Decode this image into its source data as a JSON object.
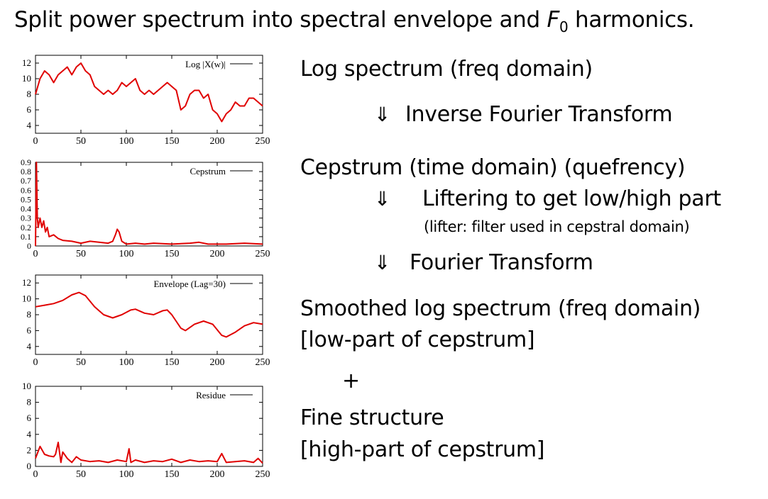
{
  "slide": {
    "title_pre": "Split power spectrum into spectral envelope and ",
    "title_f": "F",
    "title_sub": "0",
    "title_post": " harmonics."
  },
  "steps": {
    "log_spectrum": "Log spectrum (freq domain)",
    "arrow_symbol": "⇓",
    "inverse_ft": "Inverse Fourier Transform",
    "cepstrum": "Cepstrum (time domain) (quefrency)",
    "liftering": "Liftering to get low/high part",
    "lifter_note": "(lifter: filter used in cepstral domain)",
    "ft": "Fourier Transform",
    "smoothed": "Smoothed log spectrum (freq domain)",
    "low_part": "[low-part of cepstrum]",
    "plus": "+",
    "fine": "Fine structure",
    "high_part": "[high-part of cepstrum]"
  },
  "chart_data": [
    {
      "type": "line",
      "legend": "Log |X(w)|",
      "legend_position": "top-right",
      "color": "#e00000",
      "xlim": [
        0,
        250
      ],
      "ylim": [
        3,
        13
      ],
      "xticks": [
        0,
        50,
        100,
        150,
        200,
        250
      ],
      "yticks": [
        4,
        6,
        8,
        10,
        12
      ],
      "x": [
        0,
        5,
        10,
        15,
        20,
        25,
        30,
        35,
        40,
        45,
        50,
        55,
        60,
        65,
        70,
        75,
        80,
        85,
        90,
        95,
        100,
        105,
        110,
        115,
        120,
        125,
        130,
        135,
        140,
        145,
        150,
        155,
        160,
        165,
        170,
        175,
        180,
        185,
        190,
        195,
        200,
        205,
        210,
        215,
        220,
        225,
        230,
        235,
        240,
        245,
        250
      ],
      "y": [
        8,
        10,
        11,
        10.5,
        9.5,
        10.5,
        11,
        11.5,
        10.5,
        11.5,
        12,
        11,
        10.5,
        9,
        8.5,
        8,
        8.5,
        8,
        8.5,
        9.5,
        9,
        9.5,
        10,
        8.5,
        8,
        8.5,
        8,
        8.5,
        9,
        9.5,
        9,
        8.5,
        6,
        6.5,
        8,
        8.5,
        8.5,
        7.5,
        8,
        6,
        5.5,
        4.5,
        5.5,
        6,
        7,
        6.5,
        6.5,
        7.5,
        7.5,
        7,
        6.5
      ]
    },
    {
      "type": "line",
      "legend": "Cepstrum",
      "legend_position": "top-right",
      "color": "#e00000",
      "xlim": [
        0,
        250
      ],
      "ylim": [
        0,
        0.9
      ],
      "xticks": [
        0,
        50,
        100,
        150,
        200,
        250
      ],
      "yticks": [
        0,
        0.1,
        0.2,
        0.3,
        0.4,
        0.5,
        0.6,
        0.7,
        0.8,
        0.9
      ],
      "x": [
        0,
        1,
        2,
        3,
        4,
        5,
        7,
        9,
        11,
        13,
        15,
        20,
        25,
        30,
        40,
        50,
        60,
        70,
        80,
        85,
        88,
        90,
        92,
        95,
        100,
        110,
        120,
        130,
        150,
        170,
        180,
        190,
        210,
        230,
        250
      ],
      "y": [
        0,
        0.9,
        0.3,
        0.2,
        0.25,
        0.3,
        0.2,
        0.27,
        0.15,
        0.2,
        0.1,
        0.12,
        0.08,
        0.06,
        0.05,
        0.03,
        0.05,
        0.04,
        0.03,
        0.05,
        0.12,
        0.18,
        0.15,
        0.05,
        0.02,
        0.03,
        0.02,
        0.03,
        0.02,
        0.03,
        0.04,
        0.02,
        0.02,
        0.03,
        0.02
      ]
    },
    {
      "type": "line",
      "legend": "Envelope (Lag=30)",
      "legend_position": "top-right",
      "color": "#e00000",
      "xlim": [
        0,
        250
      ],
      "ylim": [
        3,
        13
      ],
      "xticks": [
        0,
        50,
        100,
        150,
        200,
        250
      ],
      "yticks": [
        4,
        6,
        8,
        10,
        12
      ],
      "x": [
        0,
        10,
        20,
        30,
        40,
        48,
        55,
        65,
        75,
        85,
        95,
        105,
        110,
        120,
        130,
        140,
        145,
        150,
        160,
        165,
        175,
        185,
        195,
        205,
        210,
        220,
        230,
        240,
        250
      ],
      "y": [
        9,
        9.2,
        9.4,
        9.8,
        10.5,
        10.8,
        10.4,
        9,
        8,
        7.6,
        8,
        8.6,
        8.7,
        8.2,
        8,
        8.5,
        8.6,
        8,
        6.3,
        6,
        6.8,
        7.2,
        6.8,
        5.4,
        5.2,
        5.8,
        6.6,
        7,
        6.8
      ]
    },
    {
      "type": "line",
      "legend": "Residue",
      "legend_position": "top-right",
      "color": "#e00000",
      "xlim": [
        0,
        250
      ],
      "ylim": [
        0,
        10
      ],
      "xticks": [
        0,
        50,
        100,
        150,
        200,
        250
      ],
      "yticks": [
        0,
        2,
        4,
        6,
        8,
        10
      ],
      "x": [
        0,
        5,
        10,
        15,
        20,
        22,
        25,
        28,
        30,
        35,
        40,
        45,
        50,
        60,
        70,
        80,
        90,
        100,
        103,
        105,
        110,
        120,
        130,
        140,
        150,
        160,
        170,
        180,
        190,
        200,
        205,
        210,
        220,
        230,
        240,
        245,
        250
      ],
      "y": [
        1,
        2.5,
        1.5,
        1.3,
        1.2,
        1.5,
        3,
        0.5,
        1.8,
        1,
        0.5,
        1.2,
        0.8,
        0.6,
        0.7,
        0.5,
        0.8,
        0.6,
        2.2,
        0.5,
        0.8,
        0.5,
        0.7,
        0.6,
        0.9,
        0.5,
        0.8,
        0.6,
        0.7,
        0.6,
        1.6,
        0.5,
        0.6,
        0.7,
        0.5,
        1,
        0.4
      ]
    }
  ]
}
